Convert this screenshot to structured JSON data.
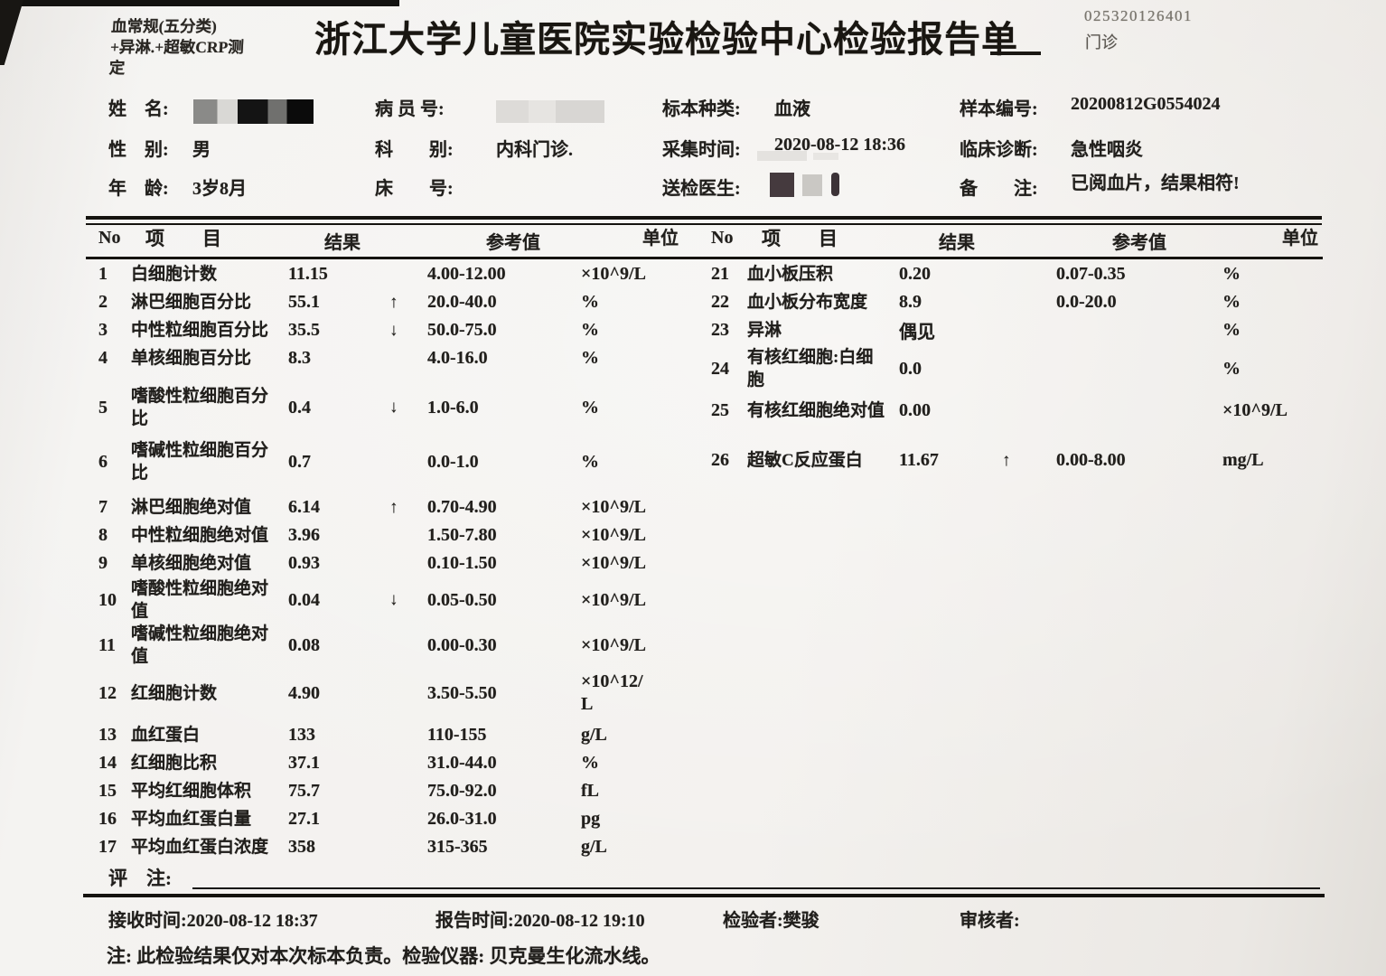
{
  "header": {
    "form_type_lines": [
      "血常规(五分类)",
      "+异淋.+超敏CRP测",
      "定"
    ],
    "title": "浙江大学儿童医院实验检验中心检验报告单",
    "doc_no": "025320126401",
    "visit_type": "门诊"
  },
  "patient": {
    "name_label": "姓　名:",
    "pid_label": "病 员 号:",
    "specimen_label": "标本种类:",
    "specimen": "血液",
    "sample_label": "样本编号:",
    "sample_no": "20200812G0554024",
    "sex_label": "性　别:",
    "sex": "男",
    "dept_label": "科　　别:",
    "dept": "内科门诊.",
    "collect_label": "采集时间:",
    "collect_time": "2020-08-12 18:36",
    "diag_label": "临床诊断:",
    "diagnosis": "急性咽炎",
    "age_label": "年　龄:",
    "age": "3岁8月",
    "bed_label": "床　　号:",
    "bed": "",
    "doctor_label": "送检医生:",
    "remark_label": "备　　注:",
    "remark": "已阅血片，结果相符!"
  },
  "table": {
    "header": {
      "no": "No",
      "item": "项　　目",
      "result": "结果",
      "ref": "参考值",
      "unit": "单位"
    },
    "left_rows": [
      {
        "no": "1",
        "name": "白细胞计数",
        "result": "11.15",
        "flag": "",
        "ref": "4.00-12.00",
        "unit": "×10^9/L",
        "unit2": ""
      },
      {
        "no": "2",
        "name": "淋巴细胞百分比",
        "result": "55.1",
        "flag": "↑",
        "ref": "20.0-40.0",
        "unit": "%",
        "unit2": ""
      },
      {
        "no": "3",
        "name": "中性粒细胞百分比",
        "result": "35.5",
        "flag": "↓",
        "ref": "50.0-75.0",
        "unit": "%",
        "unit2": ""
      },
      {
        "no": "4",
        "name": "单核细胞百分比",
        "result": "8.3",
        "flag": "",
        "ref": "4.0-16.0",
        "unit": "%",
        "unit2": ""
      },
      {
        "no": "5",
        "name": "嗜酸性粒细胞百分比",
        "result": "0.4",
        "flag": "↓",
        "ref": "1.0-6.0",
        "unit": "%",
        "unit2": ""
      },
      {
        "no": "6",
        "name": "嗜碱性粒细胞百分比",
        "result": "0.7",
        "flag": "",
        "ref": "0.0-1.0",
        "unit": "%",
        "unit2": ""
      },
      {
        "no": "7",
        "name": "淋巴细胞绝对值",
        "result": "6.14",
        "flag": "↑",
        "ref": "0.70-4.90",
        "unit": "×10^9/L",
        "unit2": ""
      },
      {
        "no": "8",
        "name": "中性粒细胞绝对值",
        "result": "3.96",
        "flag": "",
        "ref": "1.50-7.80",
        "unit": "×10^9/L",
        "unit2": ""
      },
      {
        "no": "9",
        "name": "单核细胞绝对值",
        "result": "0.93",
        "flag": "",
        "ref": "0.10-1.50",
        "unit": "×10^9/L",
        "unit2": ""
      },
      {
        "no": "10",
        "name": "嗜酸性粒细胞绝对值",
        "result": "0.04",
        "flag": "↓",
        "ref": "0.05-0.50",
        "unit": "×10^9/L",
        "unit2": ""
      },
      {
        "no": "11",
        "name": "嗜碱性粒细胞绝对值",
        "result": "0.08",
        "flag": "",
        "ref": "0.00-0.30",
        "unit": "×10^9/L",
        "unit2": ""
      },
      {
        "no": "12",
        "name": "红细胞计数",
        "result": "4.90",
        "flag": "",
        "ref": "3.50-5.50",
        "unit": "×10^12/",
        "unit2": "L"
      },
      {
        "no": "13",
        "name": "血红蛋白",
        "result": "133",
        "flag": "",
        "ref": "110-155",
        "unit": "g/L",
        "unit2": ""
      },
      {
        "no": "14",
        "name": "红细胞比积",
        "result": "37.1",
        "flag": "",
        "ref": "31.0-44.0",
        "unit": "%",
        "unit2": ""
      },
      {
        "no": "15",
        "name": "平均红细胞体积",
        "result": "75.7",
        "flag": "",
        "ref": "75.0-92.0",
        "unit": "fL",
        "unit2": ""
      },
      {
        "no": "16",
        "name": "平均血红蛋白量",
        "result": "27.1",
        "flag": "",
        "ref": "26.0-31.0",
        "unit": "pg",
        "unit2": ""
      },
      {
        "no": "17",
        "name": "平均血红蛋白浓度",
        "result": "358",
        "flag": "",
        "ref": "315-365",
        "unit": "g/L",
        "unit2": ""
      }
    ],
    "right_rows": [
      {
        "no": "21",
        "name": "血小板压积",
        "result": "0.20",
        "flag": "",
        "ref": "0.07-0.35",
        "unit": "%",
        "unit2": ""
      },
      {
        "no": "22",
        "name": "血小板分布宽度",
        "result": "8.9",
        "flag": "",
        "ref": "0.0-20.0",
        "unit": "%",
        "unit2": ""
      },
      {
        "no": "23",
        "name": "异淋",
        "result": "偶见",
        "flag": "",
        "ref": "",
        "unit": "%",
        "unit2": ""
      },
      {
        "no": "24",
        "name": "有核红细胞:白细胞",
        "result": "0.0",
        "flag": "",
        "ref": "",
        "unit": "%",
        "unit2": ""
      },
      {
        "no": "25",
        "name": "有核红细胞绝对值",
        "result": "0.00",
        "flag": "",
        "ref": "",
        "unit": "×10^9/L",
        "unit2": ""
      },
      {
        "no": "26",
        "name": "超敏C反应蛋白",
        "result": "11.67",
        "flag": "↑",
        "ref": "0.00-8.00",
        "unit": "mg/L",
        "unit2": ""
      }
    ]
  },
  "comment": {
    "label": "评　注:"
  },
  "footer": {
    "recv_label": "接收时间:",
    "recv_time": "2020-08-12 18:37",
    "report_label": "报告时间:",
    "report_time": "2020-08-12 19:10",
    "tester_label": "检验者:",
    "tester": "樊骏",
    "reviewer_label": "审核者:",
    "reviewer": "",
    "note": "注: 此检验结果仅对本次标本负责。检验仪器: 贝克曼生化流水线。"
  }
}
